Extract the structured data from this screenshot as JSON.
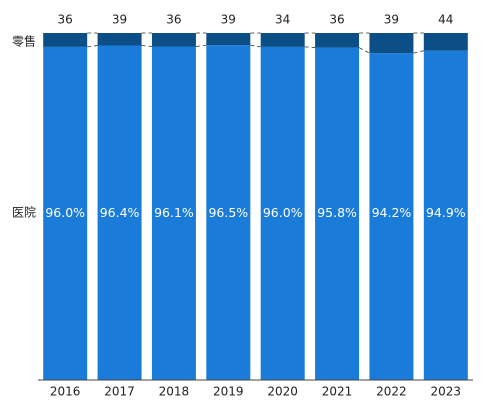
{
  "chart_data": {
    "type": "stacked-bar-100",
    "categories": [
      "2016",
      "2017",
      "2018",
      "2019",
      "2020",
      "2021",
      "2022",
      "2023"
    ],
    "totals": [
      36,
      39,
      36,
      39,
      34,
      36,
      39,
      44
    ],
    "series": [
      {
        "name": "医院",
        "color": "#1b7bd8",
        "values": [
          96.0,
          96.4,
          96.1,
          96.5,
          96.0,
          95.8,
          94.2,
          94.9
        ],
        "value_labels": [
          "96.0%",
          "96.4%",
          "96.1%",
          "96.5%",
          "96.0%",
          "95.8%",
          "94.2%",
          "94.9%"
        ]
      },
      {
        "name": "零售",
        "color": "#0c4f87",
        "values": [
          4.0,
          3.6,
          3.9,
          3.5,
          4.0,
          4.2,
          5.8,
          5.1
        ]
      }
    ],
    "ylim": [
      0,
      100
    ]
  }
}
